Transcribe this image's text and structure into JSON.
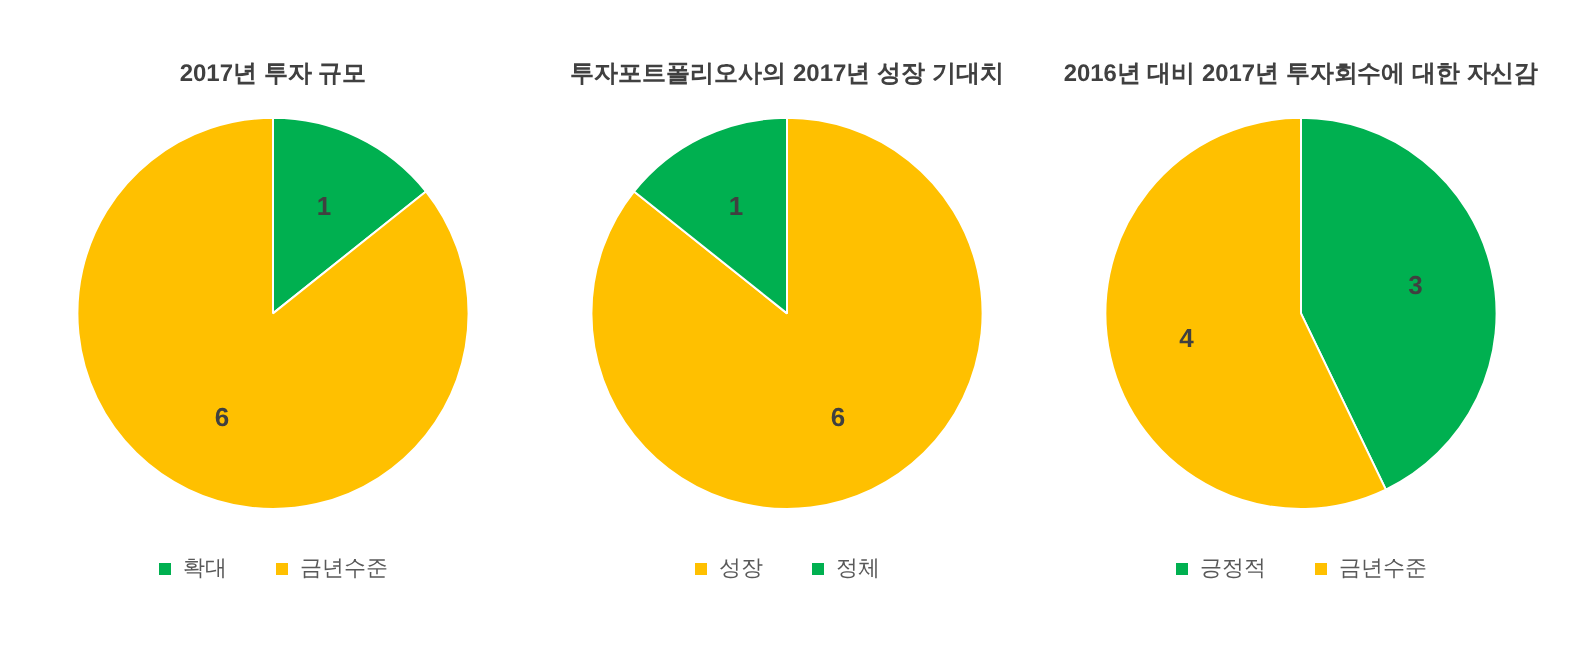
{
  "chart_data": [
    {
      "type": "pie",
      "title": "2017년 투자 규모",
      "categories": [
        "확대",
        "금년수준"
      ],
      "values": [
        1,
        6
      ],
      "colors": [
        "#00b050",
        "#ffc000"
      ],
      "data_labels": true,
      "legend": "bottom"
    },
    {
      "type": "pie",
      "title": "투자포트폴리오사의 2017년 성장 기대치",
      "categories": [
        "성장",
        "정체"
      ],
      "values": [
        6,
        1
      ],
      "colors": [
        "#ffc000",
        "#00b050"
      ],
      "data_labels": true,
      "legend": "bottom"
    },
    {
      "type": "pie",
      "title": "2016년 대비 2017년 투자회수에 대한 자신감",
      "categories": [
        "긍정적",
        "금년수준"
      ],
      "values": [
        3,
        4
      ],
      "colors": [
        "#00b050",
        "#ffc000"
      ],
      "data_labels": true,
      "legend": "bottom"
    }
  ]
}
